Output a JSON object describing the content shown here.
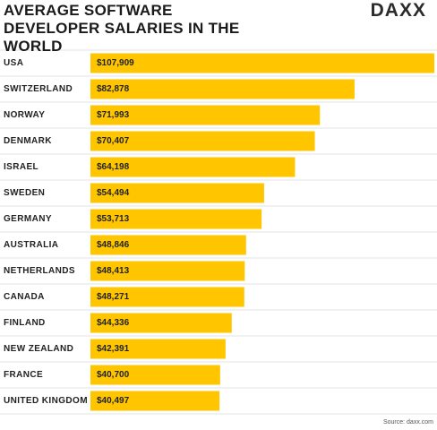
{
  "logo": "DAXX",
  "chart_data": {
    "type": "bar",
    "orientation": "horizontal",
    "title": "AVERAGE SOFTWARE DEVELOPER SALARIES IN THE WORLD",
    "categories": [
      "USA",
      "SWITZERLAND",
      "NORWAY",
      "DENMARK",
      "ISRAEL",
      "SWEDEN",
      "GERMANY",
      "AUSTRALIA",
      "NETHERLANDS",
      "CANADA",
      "FINLAND",
      "NEW ZEALAND",
      "FRANCE",
      "UNITED KINGDOM"
    ],
    "values": [
      107909,
      82878,
      71993,
      70407,
      64198,
      54494,
      53713,
      48846,
      48413,
      48271,
      44336,
      42391,
      40700,
      40497
    ],
    "value_labels": [
      "$107,909",
      "$82,878",
      "$71,993",
      "$70,407",
      "$64,198",
      "$54,494",
      "$53,713",
      "$48,846",
      "$48,413",
      "$48,271",
      "$44,336",
      "$42,391",
      "$40,700",
      "$40,497"
    ],
    "color": "#ffc600",
    "source": "Source: daxx.com"
  }
}
